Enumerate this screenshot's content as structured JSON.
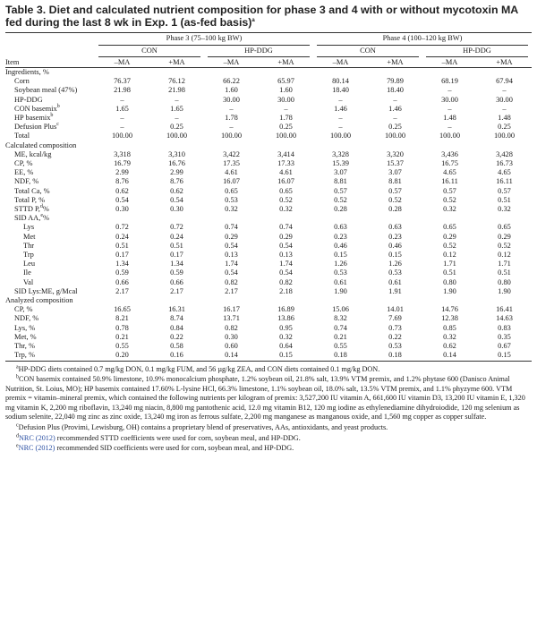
{
  "title": "Table 3. Diet and calculated nutrient composition for phase 3 and 4 with or without mycotoxin MA fed during the last 8 wk in Exp. 1 (as-fed basis)",
  "title_sup": "a",
  "phases": [
    "Phase 3 (75–100 kg BW)",
    "Phase 4 (100–120 kg BW)"
  ],
  "groups": [
    "CON",
    "HP-DDG",
    "CON",
    "HP-DDG"
  ],
  "item_header": "Item",
  "columns": [
    "–MA",
    "+MA",
    "–MA",
    "+MA",
    "–MA",
    "+MA",
    "–MA",
    "+MA"
  ],
  "sections": [
    {
      "label": "Ingredients, %",
      "rows": [
        {
          "label": "Corn",
          "sup": "",
          "indent": 1,
          "values": [
            "76.37",
            "76.12",
            "66.22",
            "65.97",
            "80.14",
            "79.89",
            "68.19",
            "67.94"
          ]
        },
        {
          "label": "Soybean meal (47%)",
          "sup": "",
          "indent": 1,
          "values": [
            "21.98",
            "21.98",
            "1.60",
            "1.60",
            "18.40",
            "18.40",
            "–",
            "–"
          ]
        },
        {
          "label": "HP-DDG",
          "sup": "",
          "indent": 1,
          "values": [
            "–",
            "–",
            "30.00",
            "30.00",
            "–",
            "–",
            "30.00",
            "30.00"
          ]
        },
        {
          "label": "CON basemix",
          "sup": "b",
          "indent": 1,
          "values": [
            "1.65",
            "1.65",
            "–",
            "–",
            "1.46",
            "1.46",
            "–",
            "–"
          ]
        },
        {
          "label": "HP basemix",
          "sup": "b",
          "indent": 1,
          "values": [
            "–",
            "–",
            "1.78",
            "1.78",
            "–",
            "–",
            "1.48",
            "1.48"
          ]
        },
        {
          "label": "Defusion Plus",
          "sup": "c",
          "indent": 1,
          "values": [
            "–",
            "0.25",
            "–",
            "0.25",
            "–",
            "0.25",
            "–",
            "0.25"
          ]
        },
        {
          "label": "Total",
          "sup": "",
          "indent": 1,
          "values": [
            "100.00",
            "100.00",
            "100.00",
            "100.00",
            "100.00",
            "100.00",
            "100.00",
            "100.00"
          ]
        }
      ]
    },
    {
      "label": "Calculated composition",
      "rows": [
        {
          "label": "ME, kcal/kg",
          "sup": "",
          "indent": 1,
          "values": [
            "3,318",
            "3,310",
            "3,422",
            "3,414",
            "3,328",
            "3,320",
            "3,436",
            "3,428"
          ]
        },
        {
          "label": "CP, %",
          "sup": "",
          "indent": 1,
          "values": [
            "16.79",
            "16.76",
            "17.35",
            "17.33",
            "15.39",
            "15.37",
            "16.75",
            "16.73"
          ]
        },
        {
          "label": "EE, %",
          "sup": "",
          "indent": 1,
          "values": [
            "2.99",
            "2.99",
            "4.61",
            "4.61",
            "3.07",
            "3.07",
            "4.65",
            "4.65"
          ]
        },
        {
          "label": "NDF, %",
          "sup": "",
          "indent": 1,
          "values": [
            "8.76",
            "8.76",
            "16.07",
            "16.07",
            "8.81",
            "8.81",
            "16.11",
            "16.11"
          ]
        },
        {
          "label": "Total Ca, %",
          "sup": "",
          "indent": 1,
          "values": [
            "0.62",
            "0.62",
            "0.65",
            "0.65",
            "0.57",
            "0.57",
            "0.57",
            "0.57"
          ]
        },
        {
          "label": "Total P, %",
          "sup": "",
          "indent": 1,
          "values": [
            "0.54",
            "0.54",
            "0.53",
            "0.52",
            "0.52",
            "0.52",
            "0.52",
            "0.51"
          ]
        },
        {
          "label": "STTD P,",
          "sup": "d",
          "suffix": "%",
          "indent": 1,
          "values": [
            "0.30",
            "0.30",
            "0.32",
            "0.32",
            "0.28",
            "0.28",
            "0.32",
            "0.32"
          ]
        },
        {
          "label": "SID AA,",
          "sup": "e",
          "suffix": "%",
          "indent": 1,
          "values": [
            "",
            "",
            "",
            "",
            "",
            "",
            "",
            ""
          ]
        },
        {
          "label": "Lys",
          "sup": "",
          "indent": 2,
          "values": [
            "0.72",
            "0.72",
            "0.74",
            "0.74",
            "0.63",
            "0.63",
            "0.65",
            "0.65"
          ]
        },
        {
          "label": "Met",
          "sup": "",
          "indent": 2,
          "values": [
            "0.24",
            "0.24",
            "0.29",
            "0.29",
            "0.23",
            "0.23",
            "0.29",
            "0.29"
          ]
        },
        {
          "label": "Thr",
          "sup": "",
          "indent": 2,
          "values": [
            "0.51",
            "0.51",
            "0.54",
            "0.54",
            "0.46",
            "0.46",
            "0.52",
            "0.52"
          ]
        },
        {
          "label": "Trp",
          "sup": "",
          "indent": 2,
          "values": [
            "0.17",
            "0.17",
            "0.13",
            "0.13",
            "0.15",
            "0.15",
            "0.12",
            "0.12"
          ]
        },
        {
          "label": "Leu",
          "sup": "",
          "indent": 2,
          "values": [
            "1.34",
            "1.34",
            "1.74",
            "1.74",
            "1.26",
            "1.26",
            "1.71",
            "1.71"
          ]
        },
        {
          "label": "Ile",
          "sup": "",
          "indent": 2,
          "values": [
            "0.59",
            "0.59",
            "0.54",
            "0.54",
            "0.53",
            "0.53",
            "0.51",
            "0.51"
          ]
        },
        {
          "label": "Val",
          "sup": "",
          "indent": 2,
          "values": [
            "0.66",
            "0.66",
            "0.82",
            "0.82",
            "0.61",
            "0.61",
            "0.80",
            "0.80"
          ]
        },
        {
          "label": "SID Lys:ME, g/Mcal",
          "sup": "",
          "indent": 1,
          "values": [
            "2.17",
            "2.17",
            "2.17",
            "2.18",
            "1.90",
            "1.91",
            "1.90",
            "1.90"
          ]
        }
      ]
    },
    {
      "label": "Analyzed composition",
      "rows": [
        {
          "label": "CP, %",
          "sup": "",
          "indent": 1,
          "values": [
            "16.65",
            "16.31",
            "16.17",
            "16.89",
            "15.06",
            "14.01",
            "14.76",
            "16.41"
          ]
        },
        {
          "label": "NDF, %",
          "sup": "",
          "indent": 1,
          "values": [
            "8.21",
            "8.74",
            "13.71",
            "13.86",
            "8.32",
            "7.69",
            "12.38",
            "14.63"
          ]
        },
        {
          "label": "Lys, %",
          "sup": "",
          "indent": 1,
          "values": [
            "0.78",
            "0.84",
            "0.82",
            "0.95",
            "0.74",
            "0.73",
            "0.85",
            "0.83"
          ]
        },
        {
          "label": "Met, %",
          "sup": "",
          "indent": 1,
          "values": [
            "0.21",
            "0.22",
            "0.30",
            "0.32",
            "0.21",
            "0.22",
            "0.32",
            "0.35"
          ]
        },
        {
          "label": "Thr, %",
          "sup": "",
          "indent": 1,
          "values": [
            "0.55",
            "0.58",
            "0.60",
            "0.64",
            "0.55",
            "0.53",
            "0.62",
            "0.67"
          ]
        },
        {
          "label": "Trp, %",
          "sup": "",
          "indent": 1,
          "values": [
            "0.20",
            "0.16",
            "0.14",
            "0.15",
            "0.18",
            "0.18",
            "0.14",
            "0.15"
          ]
        }
      ]
    }
  ],
  "footnotes": {
    "a": "HP-DDG diets contained 0.7 mg/kg DON, 0.1 mg/kg FUM, and 56 µg/kg ZEA, and CON diets contained 0.1 mg/kg DON.",
    "b": "CON basemix contained 50.9% limestone, 10.9% monocalcium phosphate, 1.2% soybean oil, 21.8% salt, 13.9% VTM premix, and 1.2% phytase 600 (Danisco Animal Nutrition, St. Loius, MO); HP basemix contained 17.60% L-lysine HCl, 66.3% limestone, 1.1% soybean oil, 18.0% salt, 13.5% VTM premix, and 1.1% phyzyme 600. VTM premix = vitamin–mineral premix, which contained the following nutrients per kilogram of premix: 3,527,200 IU vitamin A, 661,600 IU vitamin D3, 13,200 IU vitamin E, 1,320 mg vitamin K, 2,200 mg riboflavin, 13,240 mg niacin, 8,800 mg pantothenic acid, 12.0 mg vitamin B12, 120 mg iodine as ethylenediamine dihydroiodide, 120 mg selenium as sodium selenite, 22,040 mg zinc as zinc oxide, 13,240 mg iron as ferrous sulfate, 2,200 mg manganese as manganous oxide, and 1,560 mg copper as copper sulfate.",
    "c": "Defusion Plus (Provimi, Lewisburg, OH) contains a proprietary blend of preservatives, AAs, antioxidants, and yeast products.",
    "d_link": "NRC (2012)",
    "d": " recommended STTD coefficients were used for corn, soybean meal, and HP-DDG.",
    "e_link": "NRC (2012)",
    "e": " recommended SID coefficients were used for corn, soybean meal, and HP-DDG."
  },
  "colors": {
    "link": "#2a4fa3",
    "text": "#1a1a1a"
  }
}
